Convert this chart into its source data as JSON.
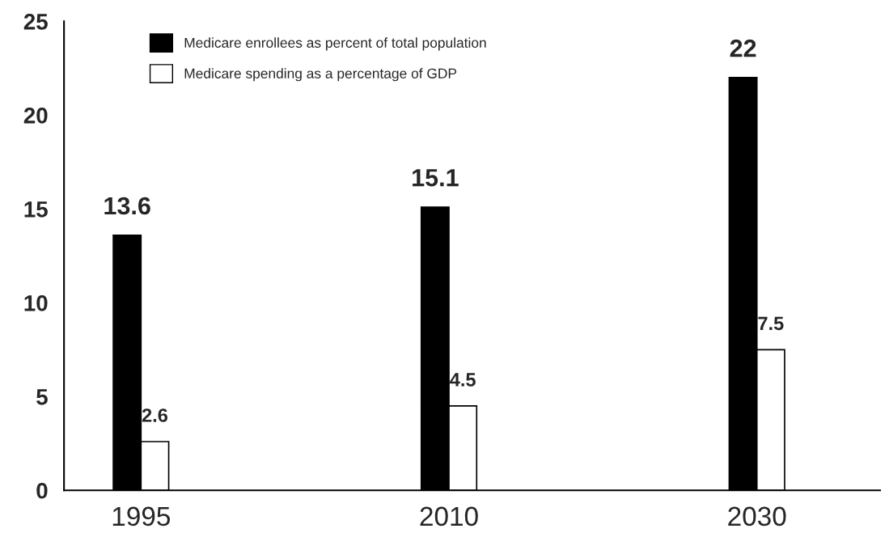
{
  "chart_data": {
    "type": "bar",
    "categories": [
      "1995",
      "2010",
      "2030"
    ],
    "series": [
      {
        "name": "Medicare enrollees as percent of total population",
        "color": "#000000",
        "values": [
          13.6,
          15.1,
          22
        ]
      },
      {
        "name": "Medicare spending as a percentage of GDP",
        "color": "#ffffff",
        "values": [
          2.6,
          4.5,
          7.5
        ]
      }
    ],
    "ylim": [
      0,
      25
    ],
    "yticks": [
      0,
      5,
      10,
      15,
      20,
      25
    ],
    "grid": false,
    "legend": "top",
    "data_labels": true
  }
}
